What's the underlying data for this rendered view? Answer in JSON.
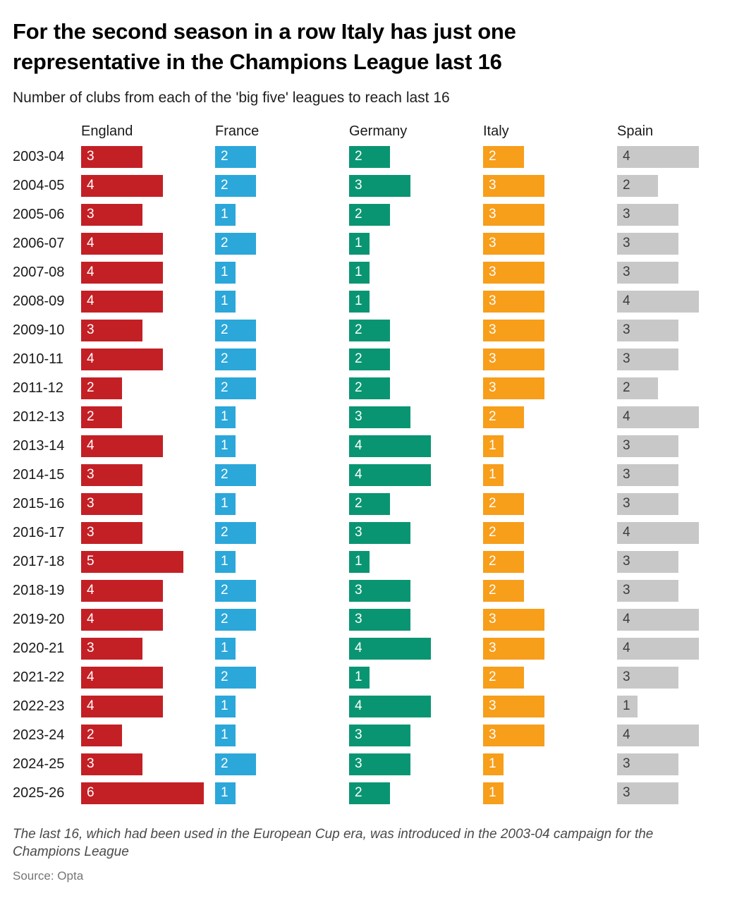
{
  "header": {
    "title": "For the second season in a row Italy has just one representative in the Champions League last 16",
    "subtitle": "Number of clubs from each of the 'big five' leagues to reach last 16"
  },
  "footer": {
    "note": "The last 16, which had been used in the European Cup era, was introduced in the 2003-04 campaign for the Champions League",
    "source": "Source: Opta"
  },
  "chart_data": {
    "type": "bar",
    "orientation": "horizontal",
    "title": "Number of clubs from each of the 'big five' leagues to reach last 16",
    "value_labels": "inside-left",
    "x_range": [
      0,
      6
    ],
    "grid": false,
    "legend_position": "column-headers",
    "categories": [
      "2003-04",
      "2004-05",
      "2005-06",
      "2006-07",
      "2007-08",
      "2008-09",
      "2009-10",
      "2010-11",
      "2011-12",
      "2012-13",
      "2013-14",
      "2014-15",
      "2015-16",
      "2016-17",
      "2017-18",
      "2018-19",
      "2019-20",
      "2020-21",
      "2021-22",
      "2022-23",
      "2023-24",
      "2024-25",
      "2025-26"
    ],
    "series": [
      {
        "name": "England",
        "color": "#c32026",
        "label_color": "#ffffff",
        "values": [
          3,
          4,
          3,
          4,
          4,
          4,
          3,
          4,
          2,
          2,
          4,
          3,
          3,
          3,
          5,
          4,
          4,
          3,
          4,
          4,
          2,
          3,
          6
        ]
      },
      {
        "name": "France",
        "color": "#2ba7da",
        "label_color": "#ffffff",
        "values": [
          2,
          2,
          1,
          2,
          1,
          1,
          2,
          2,
          2,
          1,
          1,
          2,
          1,
          2,
          1,
          2,
          2,
          1,
          2,
          1,
          1,
          2,
          1
        ]
      },
      {
        "name": "Germany",
        "color": "#0a9572",
        "label_color": "#ffffff",
        "values": [
          2,
          3,
          2,
          1,
          1,
          1,
          2,
          2,
          2,
          3,
          4,
          4,
          2,
          3,
          1,
          3,
          3,
          4,
          1,
          4,
          3,
          3,
          2
        ]
      },
      {
        "name": "Italy",
        "color": "#f79e1b",
        "label_color": "#ffffff",
        "values": [
          2,
          3,
          3,
          3,
          3,
          3,
          3,
          3,
          3,
          2,
          1,
          1,
          2,
          2,
          2,
          2,
          3,
          3,
          2,
          3,
          3,
          1,
          1
        ]
      },
      {
        "name": "Spain",
        "color": "#c8c8c8",
        "label_color": "#3c3c3c",
        "values": [
          4,
          2,
          3,
          3,
          3,
          4,
          3,
          3,
          2,
          4,
          3,
          3,
          3,
          4,
          3,
          3,
          4,
          4,
          3,
          1,
          4,
          3,
          3
        ]
      }
    ]
  }
}
